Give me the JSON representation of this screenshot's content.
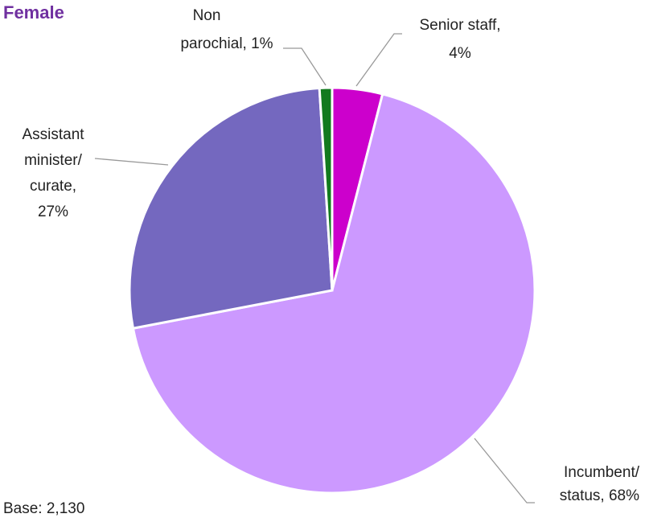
{
  "chart_data": {
    "type": "pie",
    "title": "Female",
    "note": "Base: 2,130",
    "values": [
      4,
      68,
      27,
      1
    ],
    "value_labels": [
      [
        "Senior staff,",
        "4%"
      ],
      [
        "Incumbent/",
        "status, 68%"
      ],
      [
        "Assistant",
        "minister/",
        "curate,",
        "27%"
      ],
      [
        "Non",
        "parochial, 1%"
      ]
    ],
    "colors": [
      "#cc00cc",
      "#cc99ff",
      "#7468bf",
      "#127a1e"
    ]
  }
}
